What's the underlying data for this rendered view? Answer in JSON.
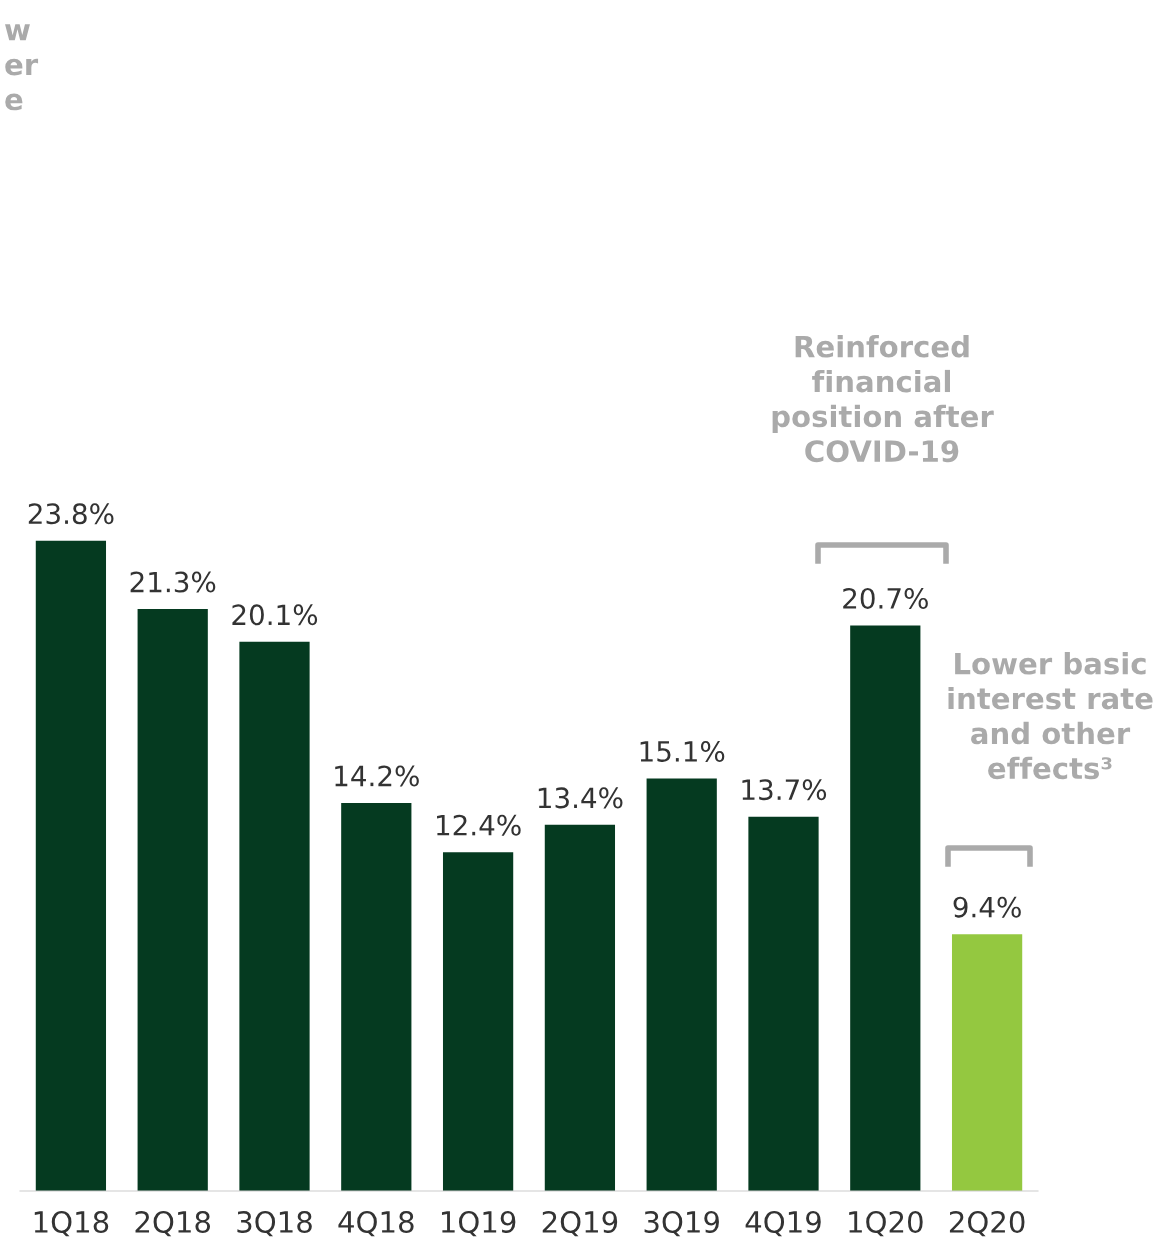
{
  "chart_data": {
    "type": "bar",
    "categories": [
      "1Q18",
      "2Q18",
      "3Q18",
      "4Q18",
      "1Q19",
      "2Q19",
      "3Q19",
      "4Q19",
      "1Q20",
      "2Q20"
    ],
    "values": [
      23.8,
      21.3,
      20.1,
      14.2,
      12.4,
      13.4,
      15.1,
      13.7,
      20.7,
      9.4
    ],
    "colors": [
      "#053a20",
      "#053a20",
      "#053a20",
      "#053a20",
      "#053a20",
      "#053a20",
      "#053a20",
      "#053a20",
      "#053a20",
      "#94c840"
    ],
    "value_labels": [
      "23.8%",
      "21.3%",
      "20.1%",
      "14.2%",
      "12.4%",
      "13.4%",
      "15.1%",
      "13.7%",
      "20.7%",
      "9.4%"
    ],
    "tick_labels": "x",
    "grid": false,
    "legend": false,
    "annotations": [
      "w\ner\ne",
      "Reinforced\nfinancial\nposition after\nCOVID-19",
      "Lower basic\ninterest rate\nand other\neffects³"
    ]
  }
}
